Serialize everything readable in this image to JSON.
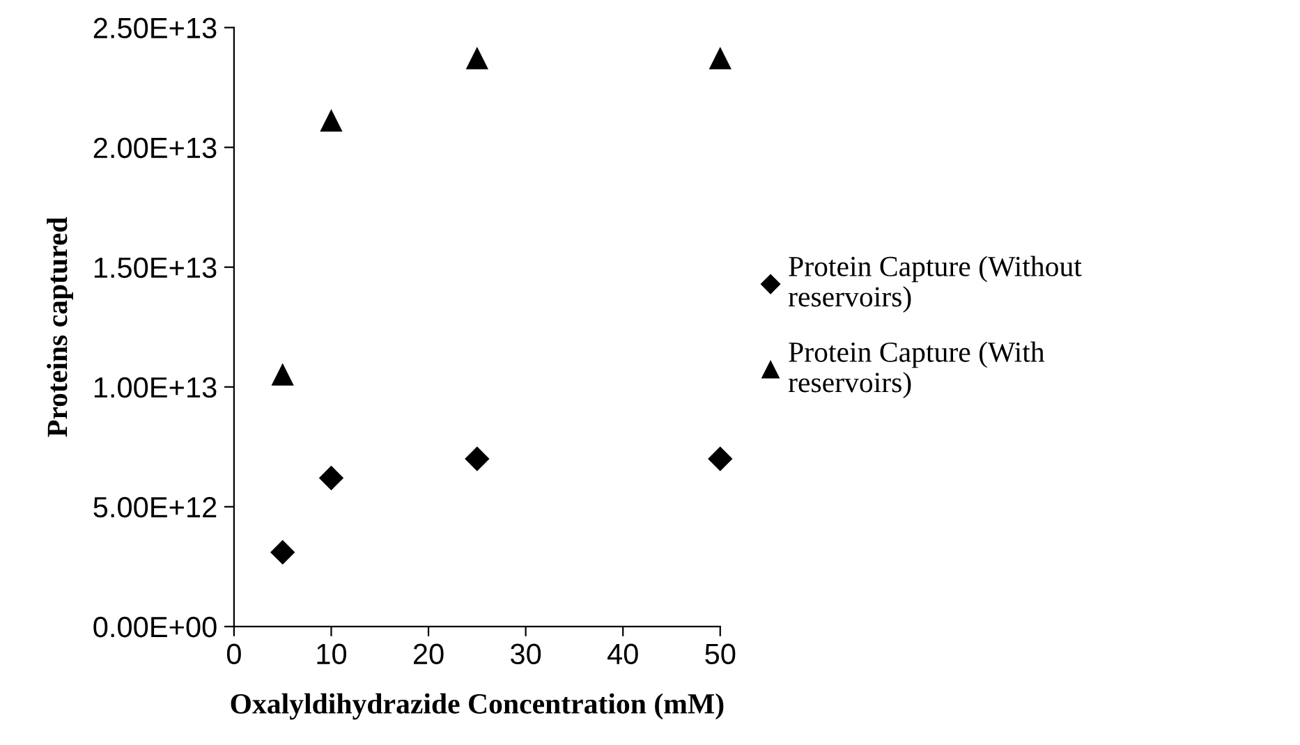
{
  "chart_data": {
    "type": "scatter",
    "xlabel": "Oxalyldihydrazide Concentration (mM)",
    "ylabel": "Proteins captured",
    "x": [
      5,
      10,
      25,
      50
    ],
    "series": [
      {
        "name": "Protein Capture (Without reservoirs)",
        "color": "#000000",
        "marker": "diamond",
        "values": [
          3100000000000.0,
          6200000000000.0,
          7000000000000.0,
          7000000000000.0
        ]
      },
      {
        "name": "Protein Capture (With reservoirs)",
        "color": "#000000",
        "marker": "triangle",
        "values": [
          10500000000000.0,
          21100000000000.0,
          23700000000000.0,
          23700000000000.0
        ]
      }
    ],
    "xlim": [
      0,
      50
    ],
    "xticks": [
      0,
      10,
      20,
      30,
      40,
      50
    ],
    "ylim": [
      0,
      25000000000000.0
    ],
    "yticks": [
      {
        "value": 0,
        "label": "0.00E+00"
      },
      {
        "value": 5000000000000.0,
        "label": "5.00E+12"
      },
      {
        "value": 10000000000000.0,
        "label": "1.00E+13"
      },
      {
        "value": 15000000000000.0,
        "label": "1.50E+13"
      },
      {
        "value": 20000000000000.0,
        "label": "2.00E+13"
      },
      {
        "value": 25000000000000.0,
        "label": "2.50E+13"
      }
    ],
    "grid": false,
    "legend": "right"
  }
}
